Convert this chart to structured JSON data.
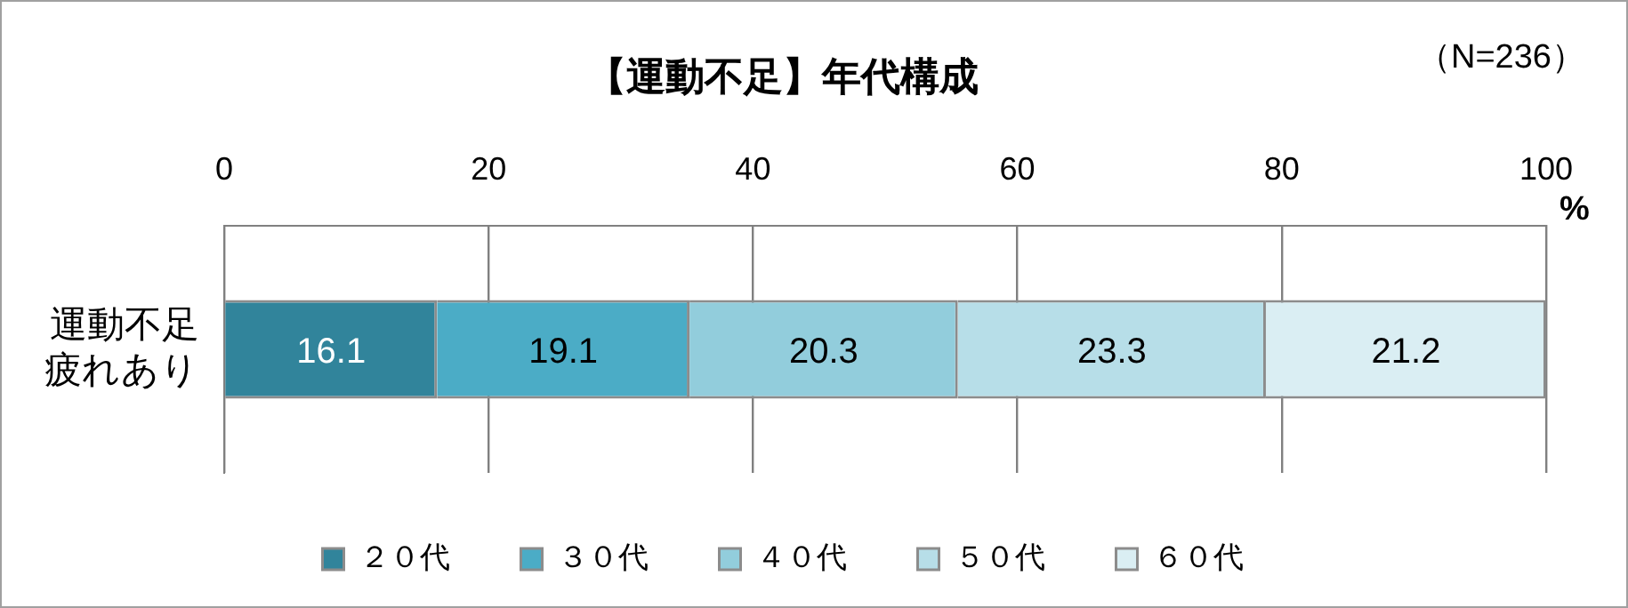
{
  "chart_data": {
    "type": "bar",
    "orientation": "horizontal",
    "stacked": true,
    "title": "【運動不足】年代構成",
    "xlabel": "%",
    "annotations": [
      "（N=236）"
    ],
    "categories": [
      "運動不足疲れあり"
    ],
    "series": [
      {
        "name": "２０代",
        "color": "#31849b",
        "values": [
          16.1
        ]
      },
      {
        "name": "３０代",
        "color": "#4bacc6",
        "values": [
          19.1
        ]
      },
      {
        "name": "４０代",
        "color": "#92cddc",
        "values": [
          20.3
        ]
      },
      {
        "name": "５０代",
        "color": "#b7dee8",
        "values": [
          23.3
        ]
      },
      {
        "name": "６０代",
        "color": "#daeef3",
        "values": [
          21.2
        ]
      }
    ],
    "xlim": [
      0,
      100
    ],
    "xticks": [
      0,
      20,
      40,
      60,
      80,
      100
    ],
    "grid": "x",
    "legend": "bottom",
    "data_labels": true
  }
}
